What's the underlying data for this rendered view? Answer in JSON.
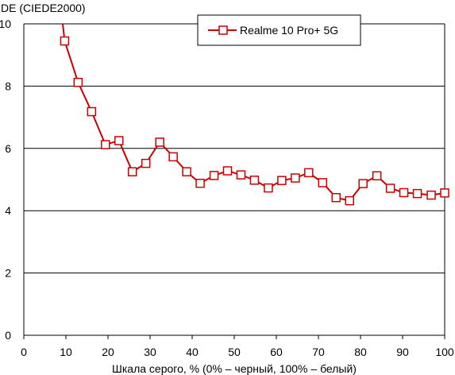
{
  "chart_data": {
    "type": "line",
    "ylabel": "DE (CIEDE2000)",
    "xlabel": "Шкала серого, % (0% – черный, 100% – белый)",
    "xlim": [
      0,
      100
    ],
    "ylim": [
      0,
      10
    ],
    "x_ticks": [
      "0",
      "10",
      "20",
      "30",
      "40",
      "50",
      "60",
      "70",
      "80",
      "90",
      "100"
    ],
    "y_ticks": [
      "0",
      "2",
      "4",
      "6",
      "8",
      "10"
    ],
    "grid": "horizontal",
    "legend_position": "top-right",
    "series": [
      {
        "name": "Realme 10 Pro+ 5G",
        "color": "#cc0000",
        "marker": "square-open",
        "x": [
          9.7,
          12.9,
          16.1,
          19.4,
          22.6,
          25.8,
          29.0,
          32.3,
          35.5,
          38.7,
          41.9,
          45.2,
          48.4,
          51.6,
          54.8,
          58.1,
          61.3,
          64.5,
          67.7,
          71.0,
          74.2,
          77.4,
          80.6,
          83.9,
          87.1,
          90.3,
          93.5,
          96.8,
          100.0
        ],
        "y": [
          9.45,
          8.12,
          7.18,
          6.12,
          6.25,
          5.25,
          5.52,
          6.2,
          5.73,
          5.25,
          4.88,
          5.13,
          5.28,
          5.15,
          4.98,
          4.73,
          4.97,
          5.05,
          5.22,
          4.9,
          4.42,
          4.32,
          4.87,
          5.12,
          4.72,
          4.58,
          4.55,
          4.5,
          4.57
        ],
        "lead_in": {
          "x": [
            9.0,
            9.7
          ],
          "y": [
            10.3,
            9.45
          ]
        }
      }
    ]
  }
}
